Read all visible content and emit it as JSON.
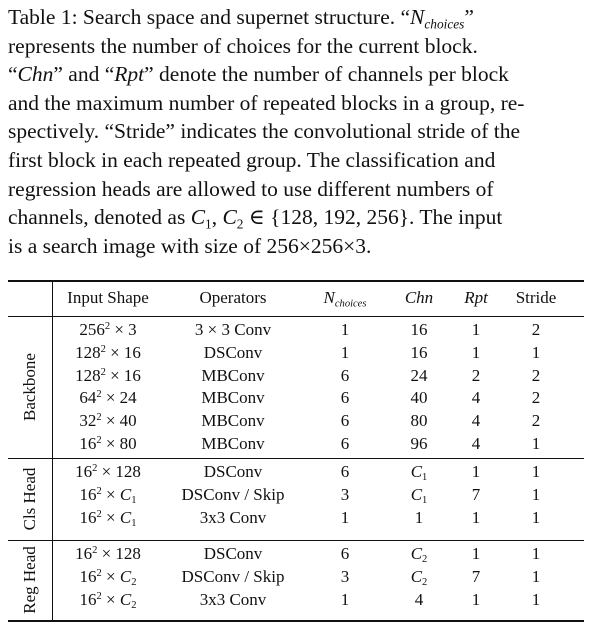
{
  "caption": {
    "l1a": "Table 1: Search space and supernet structure. “",
    "l1_n": "N",
    "l1_sub": "choices",
    "l1b": "”",
    "l2": "represents the number of choices for the current block.",
    "l3a": "“",
    "l3_chn": "Chn",
    "l3b": "” and “",
    "l3_rpt": "Rpt",
    "l3c": "” denote the number of channels per block",
    "l4": "and the maximum number of repeated blocks in a group, re-",
    "l5": "spectively. “Stride” indicates the convolutional stride of the",
    "l6": "first block in each repeated group.  The classification and",
    "l7": "regression heads are allowed to use different numbers of",
    "l8a": "channels, denoted as ",
    "l8_c": "C",
    "l8_s1": "1",
    "l8_comma": ", ",
    "l8_s2": "2",
    "l8b": " ∈ {128, 192, 256}. The input",
    "l9": "is a search image with size of 256×256×3."
  },
  "table": {
    "headers": {
      "input_shape": "Input Shape",
      "operators": "Operators",
      "n_choices_n": "N",
      "n_choices_sub": "choices",
      "chn": "Chn",
      "rpt": "Rpt",
      "stride": "Stride"
    },
    "groups": [
      {
        "label": "Backbone",
        "rows": [
          {
            "shape_base": "256",
            "shape_exp": "2",
            "shape_rest": " × 3",
            "op": "3 × 3 Conv",
            "n": "1",
            "chn": "16",
            "rpt": "1",
            "stride": "2"
          },
          {
            "shape_base": "128",
            "shape_exp": "2",
            "shape_rest": " × 16",
            "op": "DSConv",
            "n": "1",
            "chn": "16",
            "rpt": "1",
            "stride": "1"
          },
          {
            "shape_base": "128",
            "shape_exp": "2",
            "shape_rest": " × 16",
            "op": "MBConv",
            "n": "6",
            "chn": "24",
            "rpt": "2",
            "stride": "2"
          },
          {
            "shape_base": "64",
            "shape_exp": "2",
            "shape_rest": " × 24",
            "op": "MBConv",
            "n": "6",
            "chn": "40",
            "rpt": "4",
            "stride": "2"
          },
          {
            "shape_base": "32",
            "shape_exp": "2",
            "shape_rest": " × 40",
            "op": "MBConv",
            "n": "6",
            "chn": "80",
            "rpt": "4",
            "stride": "2"
          },
          {
            "shape_base": "16",
            "shape_exp": "2",
            "shape_rest": " × 80",
            "op": "MBConv",
            "n": "6",
            "chn": "96",
            "rpt": "4",
            "stride": "1"
          }
        ]
      },
      {
        "label": "Cls Head",
        "rows": [
          {
            "shape_base": "16",
            "shape_exp": "2",
            "shape_rest": " × 128",
            "op": "DSConv",
            "n": "6",
            "chn_c": "C",
            "chn_sub": "1",
            "chn": "",
            "rpt": "1",
            "stride": "1"
          },
          {
            "shape_base": "16",
            "shape_exp": "2",
            "shape_rest": " × ",
            "shape_c": "C",
            "shape_sub": "1",
            "op": "DSConv / Skip",
            "n": "3",
            "chn_c": "C",
            "chn_sub": "1",
            "chn": "",
            "rpt": "7",
            "stride": "1"
          },
          {
            "shape_base": "16",
            "shape_exp": "2",
            "shape_rest": " × ",
            "shape_c": "C",
            "shape_sub": "1",
            "op": "3x3 Conv",
            "n": "1",
            "chn": "1",
            "rpt": "1",
            "stride": "1"
          }
        ]
      },
      {
        "label": "Reg Head",
        "rows": [
          {
            "shape_base": "16",
            "shape_exp": "2",
            "shape_rest": " × 128",
            "op": "DSConv",
            "n": "6",
            "chn_c": "C",
            "chn_sub": "2",
            "chn": "",
            "rpt": "1",
            "stride": "1"
          },
          {
            "shape_base": "16",
            "shape_exp": "2",
            "shape_rest": " × ",
            "shape_c": "C",
            "shape_sub": "2",
            "op": "DSConv / Skip",
            "n": "3",
            "chn_c": "C",
            "chn_sub": "2",
            "chn": "",
            "rpt": "7",
            "stride": "1"
          },
          {
            "shape_base": "16",
            "shape_exp": "2",
            "shape_rest": " × ",
            "shape_c": "C",
            "shape_sub": "2",
            "op": "3x3 Conv",
            "n": "1",
            "chn": "4",
            "rpt": "1",
            "stride": "1"
          }
        ]
      }
    ]
  }
}
